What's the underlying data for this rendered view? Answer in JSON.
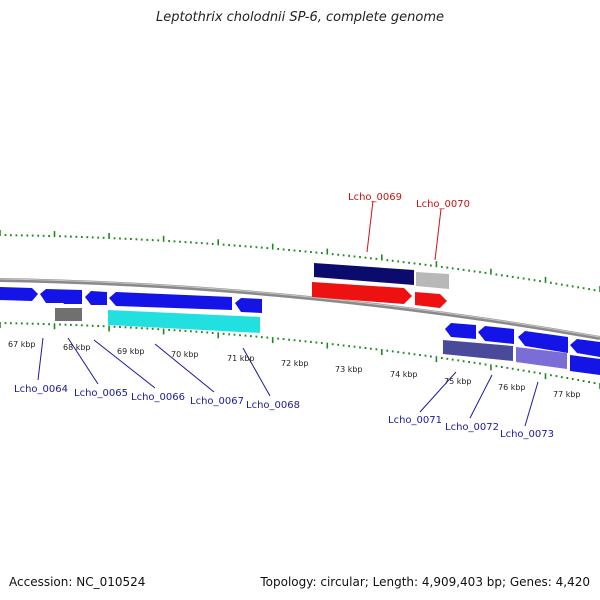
{
  "title": "Leptothrix cholodnii SP-6, complete genome",
  "footer": {
    "accession": "Accession: NC_010524",
    "summary": "Topology: circular; Length: 4,909,403 bp; Genes: 4,420"
  },
  "colors": {
    "backbone": "#8a8a8a",
    "tick": "#1f8a1f",
    "label_blue": "#1a1aa0",
    "label_red": "#cc1111",
    "gene_blue": "#1414e6",
    "gene_cyan": "#22e0e0",
    "gene_navy": "#0b0b6e",
    "gene_red": "#ee1111",
    "gene_grey": "#707070",
    "gene_lightgrey": "#b8b8b8",
    "gene_slate": "#4a4a9a",
    "gene_lavender": "#7a6ed6"
  },
  "kbp_labels": [
    "67 kbp",
    "68 kbp",
    "69 kbp",
    "70 kbp",
    "71 kbp",
    "72 kbp",
    "73 kbp",
    "74 kbp",
    "75 kbp",
    "76 kbp",
    "77 kbp"
  ],
  "gene_labels": {
    "forward": [
      "Lcho_0069",
      "Lcho_0070"
    ],
    "reverse": [
      "Lcho_0064",
      "Lcho_0065",
      "Lcho_0066",
      "Lcho_0067",
      "Lcho_0068",
      "Lcho_0071",
      "Lcho_0072",
      "Lcho_0073"
    ]
  }
}
